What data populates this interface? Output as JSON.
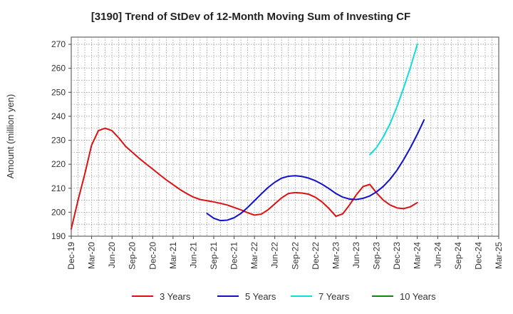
{
  "chart_data": {
    "type": "line",
    "title": "[3190]  Trend of StDev of 12-Month Moving Sum of Investing CF",
    "ylabel": "Amount (million yen)",
    "xlabel": "",
    "ylim": [
      190,
      273
    ],
    "yticks": [
      190,
      200,
      210,
      220,
      230,
      240,
      250,
      260,
      270
    ],
    "xticks": [
      "Dec-19",
      "Mar-20",
      "Jun-20",
      "Sep-20",
      "Dec-20",
      "Mar-21",
      "Jun-21",
      "Sep-21",
      "Dec-21",
      "Mar-22",
      "Jun-22",
      "Sep-22",
      "Dec-22",
      "Mar-23",
      "Jun-23",
      "Sep-23",
      "Dec-23",
      "Mar-24",
      "Jun-24",
      "Sep-24",
      "Dec-24",
      "Mar-25"
    ],
    "grid": true,
    "legend_position": "bottom",
    "series": [
      {
        "name": "3 Years",
        "color": "#dd1111",
        "points": [
          [
            "2019-12",
            193
          ],
          [
            "2020-01",
            205
          ],
          [
            "2020-02",
            216
          ],
          [
            "2020-03",
            228
          ],
          [
            "2020-04",
            234
          ],
          [
            "2020-05",
            235
          ],
          [
            "2020-06",
            234
          ],
          [
            "2020-07",
            231
          ],
          [
            "2020-08",
            227.5
          ],
          [
            "2020-09",
            225
          ],
          [
            "2020-10",
            222.5
          ],
          [
            "2020-11",
            220.2
          ],
          [
            "2020-12",
            218
          ],
          [
            "2021-01",
            215.7
          ],
          [
            "2021-02",
            213.5
          ],
          [
            "2021-03",
            211.5
          ],
          [
            "2021-04",
            209.5
          ],
          [
            "2021-05",
            207.8
          ],
          [
            "2021-06",
            206.3
          ],
          [
            "2021-07",
            205.3
          ],
          [
            "2021-08",
            204.8
          ],
          [
            "2021-09",
            204.3
          ],
          [
            "2021-10",
            203.7
          ],
          [
            "2021-11",
            203
          ],
          [
            "2021-12",
            202
          ],
          [
            "2022-01",
            201
          ],
          [
            "2022-02",
            199.8
          ],
          [
            "2022-03",
            198.8
          ],
          [
            "2022-04",
            199.2
          ],
          [
            "2022-05",
            201
          ],
          [
            "2022-06",
            203.5
          ],
          [
            "2022-07",
            206
          ],
          [
            "2022-08",
            207.8
          ],
          [
            "2022-09",
            208.2
          ],
          [
            "2022-10",
            208
          ],
          [
            "2022-11",
            207.5
          ],
          [
            "2022-12",
            206.2
          ],
          [
            "2023-01",
            204.2
          ],
          [
            "2023-02",
            201.5
          ],
          [
            "2023-03",
            198.3
          ],
          [
            "2023-04",
            199.3
          ],
          [
            "2023-05",
            203
          ],
          [
            "2023-06",
            207.2
          ],
          [
            "2023-07",
            210.7
          ],
          [
            "2023-08",
            211.6
          ],
          [
            "2023-09",
            208
          ],
          [
            "2023-10",
            205
          ],
          [
            "2023-11",
            203
          ],
          [
            "2023-12",
            201.8
          ],
          [
            "2024-01",
            201.5
          ],
          [
            "2024-02",
            202.3
          ],
          [
            "2024-03",
            204
          ]
        ]
      },
      {
        "name": "5 Years",
        "color": "#1111cc",
        "points": [
          [
            "2021-08",
            199.5
          ],
          [
            "2021-09",
            197.5
          ],
          [
            "2021-10",
            196.5
          ],
          [
            "2021-11",
            196.7
          ],
          [
            "2021-12",
            197.7
          ],
          [
            "2022-01",
            199.5
          ],
          [
            "2022-02",
            202
          ],
          [
            "2022-03",
            204.8
          ],
          [
            "2022-04",
            207.6
          ],
          [
            "2022-05",
            210.3
          ],
          [
            "2022-06",
            212.5
          ],
          [
            "2022-07",
            214.2
          ],
          [
            "2022-08",
            215
          ],
          [
            "2022-09",
            215.2
          ],
          [
            "2022-10",
            214.9
          ],
          [
            "2022-11",
            214.2
          ],
          [
            "2022-12",
            213.1
          ],
          [
            "2023-01",
            211.6
          ],
          [
            "2023-02",
            209.8
          ],
          [
            "2023-03",
            207.8
          ],
          [
            "2023-04",
            206.3
          ],
          [
            "2023-05",
            205.5
          ],
          [
            "2023-06",
            205.3
          ],
          [
            "2023-07",
            205.8
          ],
          [
            "2023-08",
            206.8
          ],
          [
            "2023-09",
            208.5
          ],
          [
            "2023-10",
            210.8
          ],
          [
            "2023-11",
            213.8
          ],
          [
            "2023-12",
            217.5
          ],
          [
            "2024-01",
            222
          ],
          [
            "2024-02",
            227
          ],
          [
            "2024-03",
            232.5
          ],
          [
            "2024-04",
            238.5
          ]
        ]
      },
      {
        "name": "7 Years",
        "color": "#11dddd",
        "points": [
          [
            "2023-08",
            224
          ],
          [
            "2023-09",
            227
          ],
          [
            "2023-10",
            231.5
          ],
          [
            "2023-11",
            237
          ],
          [
            "2023-12",
            244
          ],
          [
            "2024-01",
            252
          ],
          [
            "2024-02",
            260.5
          ],
          [
            "2024-03",
            270
          ]
        ]
      },
      {
        "name": "10 Years",
        "color": "#118811",
        "points": []
      }
    ]
  }
}
